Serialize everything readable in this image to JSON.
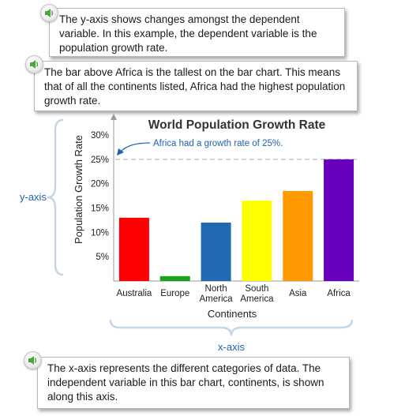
{
  "callouts": [
    {
      "text": "The y-axis shows changes amongst the dependent variable. In this example, the dependent variable is the population growth rate.",
      "icon": "speaker-icon"
    },
    {
      "text": "The bar above Africa is the tallest on the bar chart. This means that of all the continents listed, Africa had the highest population growth rate.",
      "icon": "speaker-icon"
    },
    {
      "text": "The x-axis represents the different categories of data. The independent variable in this bar chart, continents, is shown along this axis.",
      "icon": "speaker-icon"
    }
  ],
  "brace_labels": {
    "y_axis": "y-axis",
    "x_axis": "x-axis"
  },
  "colors": {
    "annotation_blue": "#1d63b0",
    "brace": "#c5d6e8"
  },
  "chart_data": {
    "type": "bar",
    "title": "World Population Growth Rate",
    "xlabel": "Continents",
    "ylabel": "Population Growth Rate",
    "categories": [
      {
        "line1": "Australia",
        "line2": ""
      },
      {
        "line1": "Europe",
        "line2": ""
      },
      {
        "line1": "North",
        "line2": "America"
      },
      {
        "line1": "South",
        "line2": "America"
      },
      {
        "line1": "Asia",
        "line2": ""
      },
      {
        "line1": "Africa",
        "line2": ""
      }
    ],
    "values": [
      13,
      1,
      12,
      16.5,
      18.5,
      25
    ],
    "colors": [
      "#ff0000",
      "#1aa31a",
      "#1f6ab0",
      "#ffff00",
      "#ff9900",
      "#6600bb"
    ],
    "yticks": [
      {
        "value": 5,
        "label": "5%"
      },
      {
        "value": 10,
        "label": "10%"
      },
      {
        "value": 15,
        "label": "15%"
      },
      {
        "value": 20,
        "label": "20%"
      },
      {
        "value": 25,
        "label": "25%"
      },
      {
        "value": 30,
        "label": "30%"
      }
    ],
    "ylim": [
      0,
      30
    ],
    "reference_line": {
      "value": 25,
      "style": "dashed"
    },
    "annotation": {
      "text": "Africa had a growth rate of 25%.",
      "points_to": 25
    },
    "grid": false
  }
}
